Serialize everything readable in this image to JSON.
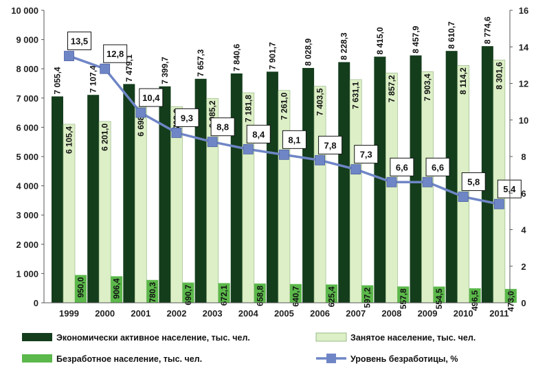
{
  "chart_data": {
    "type": "bar",
    "categories": [
      "1999",
      "2000",
      "2001",
      "2002",
      "2003",
      "2004",
      "2005",
      "2006",
      "2007",
      "2008",
      "2009",
      "2010",
      "2011"
    ],
    "series": [
      {
        "name": "Экономически активное население, тыс. чел.",
        "kind": "bar",
        "color": "#143d1c",
        "values": [
          7055.4,
          7107.4,
          7479.1,
          7399.7,
          7657.3,
          7840.6,
          7901.7,
          8028.9,
          8228.3,
          8415.0,
          8457.9,
          8610.7,
          8774.6
        ],
        "labels": [
          "7 055,4",
          "7 107,4",
          "7 479,1",
          "7 399,7",
          "7 657,3",
          "7 840,6",
          "7 901,7",
          "8 028,9",
          "8 228,3",
          "8 415,0",
          "8 457,9",
          "8 610,7",
          "8 774,6"
        ]
      },
      {
        "name": "Занятое население, тыс. чел.",
        "kind": "bar",
        "color": "#dcefc6",
        "values": [
          6105.4,
          6201.0,
          6698.8,
          6708.9,
          6985.2,
          7181.8,
          7261.0,
          7403.5,
          7631.1,
          7857.2,
          7903.4,
          8114.2,
          8301.6
        ],
        "labels": [
          "6 105,4",
          "6 201,0",
          "6 698,8",
          "6 708,9",
          "6 985,2",
          "7 181,8",
          "7 261,0",
          "7 403,5",
          "7 631,1",
          "7 857,2",
          "7 903,4",
          "8 114,2",
          "8 301,6"
        ]
      },
      {
        "name": "Безработное население, тыс. чел.",
        "kind": "bar",
        "color": "#5bb84a",
        "values": [
          950.0,
          906.4,
          780.3,
          690.7,
          672.1,
          658.8,
          640.7,
          625.4,
          597.2,
          557.8,
          554.5,
          496.5,
          473.0
        ],
        "labels": [
          "950,0",
          "906,4",
          "780,3",
          "690,7",
          "672,1",
          "658,8",
          "640,7",
          "625,4",
          "597,2",
          "557,8",
          "554,5",
          "496,5",
          "473,0"
        ]
      },
      {
        "name": "Уровень безработицы, %",
        "kind": "line",
        "axis": "right",
        "color": "#6f86c6",
        "values": [
          13.5,
          12.8,
          10.4,
          9.3,
          8.8,
          8.4,
          8.1,
          7.8,
          7.3,
          6.6,
          6.6,
          5.8,
          5.4
        ],
        "labels": [
          "13,5",
          "12,8",
          "10,4",
          "9,3",
          "8,8",
          "8,4",
          "8,1",
          "7,8",
          "7,3",
          "6,6",
          "6,6",
          "5,8",
          "5,4"
        ]
      }
    ],
    "y_left": {
      "min": 0,
      "max": 10000,
      "ticks": [
        "0",
        "1 000",
        "2 000",
        "3 000",
        "4 000",
        "5 000",
        "6 000",
        "7 000",
        "8 000",
        "9 000",
        "10 000"
      ]
    },
    "y_right": {
      "min": 0,
      "max": 16,
      "ticks": [
        "0",
        "2",
        "4",
        "6",
        "8",
        "10",
        "12",
        "14",
        "16"
      ]
    },
    "legend_position": "bottom",
    "grid": false
  }
}
